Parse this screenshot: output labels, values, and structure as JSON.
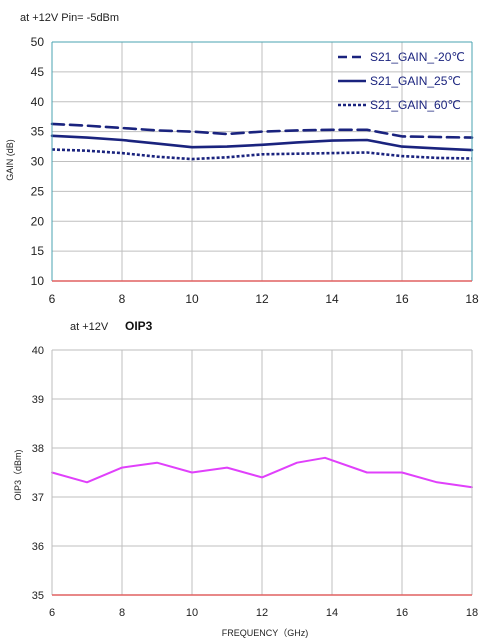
{
  "chart_data": [
    {
      "type": "line",
      "annotation": "at +12V Pin= -5dBm",
      "title": "",
      "xlabel": "",
      "ylabel": "GAIN (dB)",
      "xlim": [
        6,
        18
      ],
      "ylim": [
        10,
        50
      ],
      "x_ticks": [
        6,
        8,
        10,
        12,
        14,
        16,
        18
      ],
      "y_ticks": [
        10,
        15,
        20,
        25,
        30,
        35,
        40,
        45,
        50
      ],
      "grid": true,
      "legend_position": "top-right",
      "colors": {
        "series": "#1a237e",
        "grid": "#bfbfbf",
        "frame": "#4aa3b0",
        "bottom_axis": "#e06060"
      },
      "series": [
        {
          "name": "S21_GAIN_-20℃",
          "style": "dashed",
          "x": [
            6,
            7,
            8,
            9,
            10,
            11,
            12,
            13,
            14,
            15,
            16,
            17,
            18
          ],
          "y": [
            36.3,
            36.0,
            35.6,
            35.2,
            35.0,
            34.6,
            35.0,
            35.2,
            35.3,
            35.3,
            34.2,
            34.1,
            34.0
          ]
        },
        {
          "name": "S21_GAIN_25℃",
          "style": "solid",
          "x": [
            6,
            7,
            8,
            9,
            10,
            11,
            12,
            13,
            14,
            15,
            16,
            17,
            18
          ],
          "y": [
            34.3,
            34.0,
            33.6,
            33.0,
            32.4,
            32.5,
            32.8,
            33.2,
            33.5,
            33.6,
            32.5,
            32.2,
            31.9
          ]
        },
        {
          "name": "S21_GAIN_60℃",
          "style": "dotted",
          "x": [
            6,
            7,
            8,
            9,
            10,
            11,
            12,
            13,
            14,
            15,
            16,
            17,
            18
          ],
          "y": [
            32.0,
            31.8,
            31.4,
            30.8,
            30.4,
            30.7,
            31.2,
            31.3,
            31.4,
            31.5,
            30.9,
            30.6,
            30.5
          ]
        }
      ]
    },
    {
      "type": "line",
      "annotation": "at +12V",
      "title": "OIP3",
      "xlabel": "FREQUENCY（GHz)",
      "ylabel": "OIP3（dBm)",
      "xlim": [
        6,
        18
      ],
      "ylim": [
        35,
        40
      ],
      "x_ticks": [
        6,
        8,
        10,
        12,
        14,
        16,
        18
      ],
      "y_ticks": [
        35,
        36,
        37,
        38,
        39,
        40
      ],
      "grid": true,
      "colors": {
        "series": "#e040fb",
        "grid": "#bfbfbf",
        "frame": "#bdbdbd",
        "bottom_axis": "#e06060"
      },
      "series": [
        {
          "x": [
            6,
            7,
            8,
            9,
            10,
            11,
            12,
            13,
            13.8,
            15,
            16,
            17,
            18
          ],
          "y": [
            37.5,
            37.3,
            37.6,
            37.7,
            37.5,
            37.6,
            37.4,
            37.7,
            37.8,
            37.5,
            37.5,
            37.3,
            37.2
          ]
        }
      ]
    }
  ]
}
